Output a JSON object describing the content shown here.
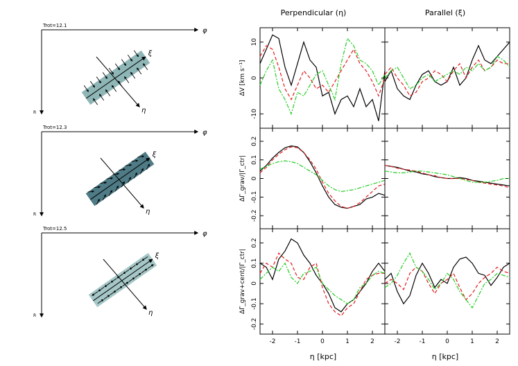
{
  "schematics": [
    {
      "label": "Trot=12.1",
      "phi": "φ",
      "r": "R",
      "xi": "ξ",
      "eta": "η",
      "box_color": "#8fb6b6",
      "arrow_mode": "perp"
    },
    {
      "label": "Trot=12.3",
      "phi": "φ",
      "r": "R",
      "xi": "ξ",
      "eta": "η",
      "box_color": "#4e7b85",
      "arrow_mode": "chevron"
    },
    {
      "label": "Trot=12.5",
      "phi": "φ",
      "r": "R",
      "xi": "ξ",
      "eta": "η",
      "box_color": "#a6c7c7",
      "arrow_mode": "parallel"
    }
  ],
  "colors": {
    "black": "#000000",
    "red": "#e41a1c",
    "green": "#22cc22"
  },
  "chart_data": {
    "type": "line",
    "column_titles": [
      "Perpendicular (η)",
      "Parallel (ξ)"
    ],
    "xlabel": "η [kpc]",
    "xlim": [
      -2.5,
      2.5
    ],
    "xticks": [
      -2,
      -1,
      0,
      1,
      2
    ],
    "rows": [
      {
        "ylabel": "ΔV [km s⁻¹]",
        "ylim": [
          -14,
          14
        ],
        "yticks": [
          -10,
          0,
          10
        ],
        "panels": [
          {
            "x": [
              -2.5,
              -2.25,
              -2.0,
              -1.75,
              -1.5,
              -1.25,
              -1.0,
              -0.75,
              -0.5,
              -0.25,
              0.0,
              0.25,
              0.5,
              0.75,
              1.0,
              1.25,
              1.5,
              1.75,
              2.0,
              2.25,
              2.5
            ],
            "series": [
              {
                "name": "black",
                "values": [
                  4,
                  8,
                  12,
                  11,
                  3,
                  -2,
                  4,
                  10,
                  5,
                  3,
                  -5,
                  -4,
                  -10,
                  -6,
                  -5,
                  -8,
                  -3,
                  -8,
                  -6,
                  -12,
                  2
                ]
              },
              {
                "name": "red",
                "values": [
                  6,
                  9,
                  8,
                  3,
                  -3,
                  -6,
                  -2,
                  2,
                  0,
                  -3,
                  -2,
                  -4,
                  -1,
                  2,
                  5,
                  8,
                  4,
                  2,
                  -1,
                  -5,
                  0
                ]
              },
              {
                "name": "green",
                "values": [
                  -2,
                  2,
                  5,
                  -3,
                  -6,
                  -10,
                  -4,
                  -5,
                  -2,
                  1,
                  2,
                  -2,
                  -6,
                  4,
                  11,
                  9,
                  5,
                  4,
                  2,
                  -2,
                  1
                ]
              }
            ]
          },
          {
            "x": [
              -2.5,
              -2.25,
              -2.0,
              -1.75,
              -1.5,
              -1.25,
              -1.0,
              -0.75,
              -0.5,
              -0.25,
              0.0,
              0.25,
              0.5,
              0.75,
              1.0,
              1.25,
              1.5,
              1.75,
              2.0,
              2.25,
              2.5
            ],
            "series": [
              {
                "name": "black",
                "values": [
                  -1,
                  2,
                  -3,
                  -5,
                  -6,
                  -2,
                  1,
                  2,
                  -1,
                  -2,
                  -1,
                  3,
                  -2,
                  0,
                  5,
                  9,
                  5,
                  4,
                  6,
                  8,
                  10
                ]
              },
              {
                "name": "red",
                "values": [
                  1,
                  3,
                  0,
                  -2,
                  -5,
                  -4,
                  -1,
                  0,
                  2,
                  1,
                  -1,
                  2,
                  4,
                  0,
                  3,
                  5,
                  2,
                  3,
                  5,
                  4,
                  4
                ]
              },
              {
                "name": "green",
                "values": [
                  0,
                  2,
                  3,
                  0,
                  -3,
                  -2,
                  0,
                  1,
                  -1,
                  0,
                  1,
                  2,
                  1,
                  3,
                  2,
                  4,
                  2,
                  3,
                  6,
                  5,
                  3
                ]
              }
            ]
          }
        ]
      },
      {
        "ylabel": "ΔΓ_grav/|Γ_ctr|",
        "ylim": [
          -0.27,
          0.27
        ],
        "yticks": [
          -0.2,
          -0.1,
          0,
          0.1,
          0.2
        ],
        "panels": [
          {
            "x": [
              -2.5,
              -2.25,
              -2.0,
              -1.75,
              -1.5,
              -1.25,
              -1.0,
              -0.75,
              -0.5,
              -0.25,
              0.0,
              0.25,
              0.5,
              0.75,
              1.0,
              1.25,
              1.5,
              1.75,
              2.0,
              2.25,
              2.5
            ],
            "series": [
              {
                "name": "black",
                "values": [
                  0.04,
                  0.07,
                  0.11,
                  0.14,
                  0.165,
                  0.175,
                  0.17,
                  0.14,
                  0.09,
                  0.03,
                  -0.04,
                  -0.1,
                  -0.14,
                  -0.155,
                  -0.16,
                  -0.15,
                  -0.14,
                  -0.11,
                  -0.1,
                  -0.08,
                  -0.09
                ]
              },
              {
                "name": "red",
                "values": [
                  0.03,
                  0.06,
                  0.1,
                  0.13,
                  0.155,
                  0.17,
                  0.165,
                  0.14,
                  0.1,
                  0.05,
                  -0.02,
                  -0.08,
                  -0.12,
                  -0.15,
                  -0.16,
                  -0.15,
                  -0.13,
                  -0.1,
                  -0.07,
                  -0.04,
                  -0.03
                ]
              },
              {
                "name": "green",
                "values": [
                  0.05,
                  0.065,
                  0.08,
                  0.09,
                  0.095,
                  0.09,
                  0.08,
                  0.06,
                  0.04,
                  0.02,
                  -0.01,
                  -0.04,
                  -0.06,
                  -0.07,
                  -0.065,
                  -0.06,
                  -0.05,
                  -0.04,
                  -0.03,
                  -0.02,
                  -0.01
                ]
              }
            ]
          },
          {
            "x": [
              -2.5,
              -2.25,
              -2.0,
              -1.75,
              -1.5,
              -1.25,
              -1.0,
              -0.75,
              -0.5,
              -0.25,
              0.0,
              0.25,
              0.5,
              0.75,
              1.0,
              1.25,
              1.5,
              1.75,
              2.0,
              2.25,
              2.5
            ],
            "series": [
              {
                "name": "black",
                "values": [
                  0.07,
                  0.065,
                  0.06,
                  0.05,
                  0.04,
                  0.035,
                  0.025,
                  0.02,
                  0.01,
                  0.005,
                  0.0,
                  0.0,
                  0.005,
                  0.0,
                  -0.01,
                  -0.015,
                  -0.02,
                  -0.025,
                  -0.03,
                  -0.035,
                  -0.04
                ]
              },
              {
                "name": "red",
                "values": [
                  0.07,
                  0.065,
                  0.055,
                  0.05,
                  0.045,
                  0.04,
                  0.03,
                  0.02,
                  0.015,
                  0.005,
                  0.0,
                  0.0,
                  0.0,
                  -0.005,
                  -0.01,
                  -0.02,
                  -0.025,
                  -0.03,
                  -0.035,
                  -0.04,
                  -0.05
                ]
              },
              {
                "name": "green",
                "values": [
                  0.04,
                  0.035,
                  0.03,
                  0.03,
                  0.035,
                  0.04,
                  0.04,
                  0.035,
                  0.03,
                  0.025,
                  0.02,
                  0.01,
                  0.0,
                  -0.01,
                  -0.02,
                  -0.02,
                  -0.02,
                  -0.015,
                  -0.01,
                  0.0,
                  0.0
                ]
              }
            ]
          }
        ]
      },
      {
        "ylabel": "ΔΓ_grav+cent/|Γ_ctr|",
        "ylim": [
          -0.25,
          0.27
        ],
        "yticks": [
          -0.2,
          -0.1,
          0,
          0.1,
          0.2
        ],
        "panels": [
          {
            "x": [
              -2.5,
              -2.25,
              -2.0,
              -1.75,
              -1.5,
              -1.25,
              -1.0,
              -0.75,
              -0.5,
              -0.25,
              0.0,
              0.25,
              0.5,
              0.75,
              1.0,
              1.25,
              1.5,
              1.75,
              2.0,
              2.25,
              2.5
            ],
            "series": [
              {
                "name": "black",
                "values": [
                  0.1,
                  0.08,
                  0.02,
                  0.12,
                  0.16,
                  0.22,
                  0.2,
                  0.14,
                  0.1,
                  0.04,
                  0.0,
                  -0.05,
                  -0.12,
                  -0.14,
                  -0.1,
                  -0.08,
                  -0.04,
                  0.0,
                  0.06,
                  0.1,
                  0.06
                ]
              },
              {
                "name": "red",
                "values": [
                  0.05,
                  0.1,
                  0.08,
                  0.15,
                  0.12,
                  0.1,
                  0.03,
                  0.02,
                  0.08,
                  0.1,
                  -0.02,
                  -0.1,
                  -0.14,
                  -0.16,
                  -0.12,
                  -0.1,
                  -0.04,
                  0.02,
                  0.04,
                  0.05,
                  0.05
                ]
              },
              {
                "name": "green",
                "values": [
                  0.02,
                  0.05,
                  0.08,
                  0.06,
                  0.1,
                  0.03,
                  0.0,
                  0.05,
                  0.06,
                  0.08,
                  0.0,
                  -0.03,
                  -0.06,
                  -0.08,
                  -0.1,
                  -0.08,
                  -0.02,
                  0.0,
                  0.04,
                  0.06,
                  0.05
                ]
              }
            ]
          },
          {
            "x": [
              -2.5,
              -2.25,
              -2.0,
              -1.75,
              -1.5,
              -1.25,
              -1.0,
              -0.75,
              -0.5,
              -0.25,
              0.0,
              0.25,
              0.5,
              0.75,
              1.0,
              1.25,
              1.5,
              1.75,
              2.0,
              2.25,
              2.5
            ],
            "series": [
              {
                "name": "black",
                "values": [
                  0.02,
                  0.05,
                  -0.04,
                  -0.1,
                  -0.06,
                  0.04,
                  0.1,
                  0.05,
                  -0.02,
                  0.02,
                  0.0,
                  0.08,
                  0.12,
                  0.13,
                  0.1,
                  0.05,
                  0.04,
                  -0.01,
                  0.03,
                  0.08,
                  0.1
                ]
              },
              {
                "name": "red",
                "values": [
                  0.0,
                  0.02,
                  0.0,
                  -0.03,
                  0.05,
                  0.08,
                  0.06,
                  0.0,
                  -0.05,
                  0.0,
                  0.02,
                  0.05,
                  -0.02,
                  -0.08,
                  -0.05,
                  0.0,
                  0.03,
                  0.05,
                  0.08,
                  0.06,
                  0.05
                ]
              },
              {
                "name": "green",
                "values": [
                  -0.02,
                  0.0,
                  0.04,
                  0.1,
                  0.15,
                  0.08,
                  0.06,
                  0.02,
                  -0.03,
                  0.0,
                  0.05,
                  0.02,
                  -0.04,
                  -0.08,
                  -0.12,
                  -0.06,
                  0.0,
                  0.02,
                  0.05,
                  0.04,
                  0.03
                ]
              }
            ]
          }
        ]
      }
    ]
  }
}
